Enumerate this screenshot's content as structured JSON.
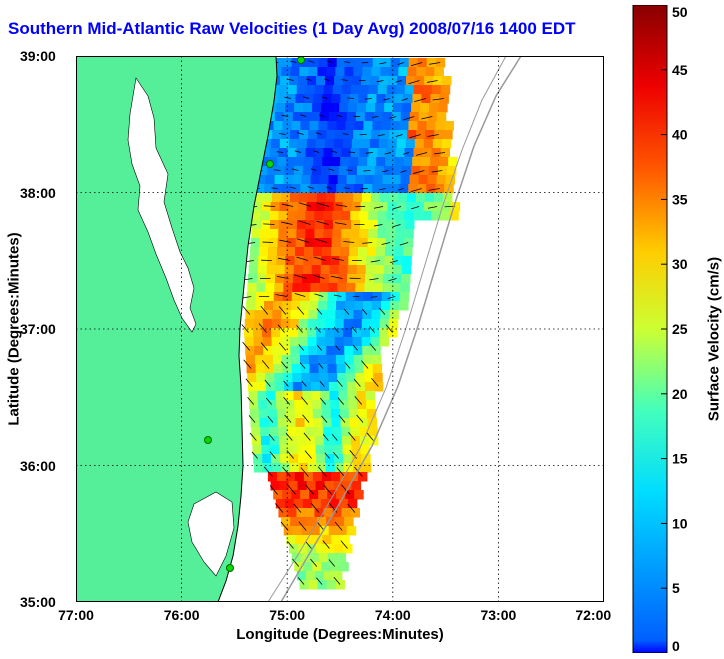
{
  "title": "Southern Mid-Atlantic Raw Velocities (1 Day Avg) 2008/07/16 1400 EDT",
  "x_axis": {
    "label": "Longitude (Degrees:Minutes)",
    "ticks": [
      "77:00",
      "76:00",
      "75:00",
      "74:00",
      "73:00",
      "72:00"
    ],
    "values": [
      -77,
      -76,
      -75,
      -74,
      -73,
      -72
    ],
    "range": [
      -77,
      -72
    ]
  },
  "y_axis": {
    "label": "Latitude (Degrees:Minutes)",
    "ticks": [
      "39:00",
      "38:00",
      "37:00",
      "36:00",
      "35:00"
    ],
    "values": [
      39,
      38,
      37,
      36,
      35
    ],
    "range": [
      35,
      39
    ]
  },
  "colorbar": {
    "label": "Surface Velocity (cm/s)",
    "ticks": [
      "50",
      "45",
      "40",
      "35",
      "30",
      "25",
      "20",
      "15",
      "10",
      "5",
      "0"
    ],
    "values": [
      50,
      45,
      40,
      35,
      30,
      25,
      20,
      15,
      10,
      5,
      0
    ],
    "range": [
      0,
      50
    ],
    "colormap": "jet"
  },
  "colors": {
    "land": "#55ee99",
    "title": "#0000ff",
    "grid": "#000000",
    "bathymetry": "#999999",
    "station": "#00dd00"
  }
}
